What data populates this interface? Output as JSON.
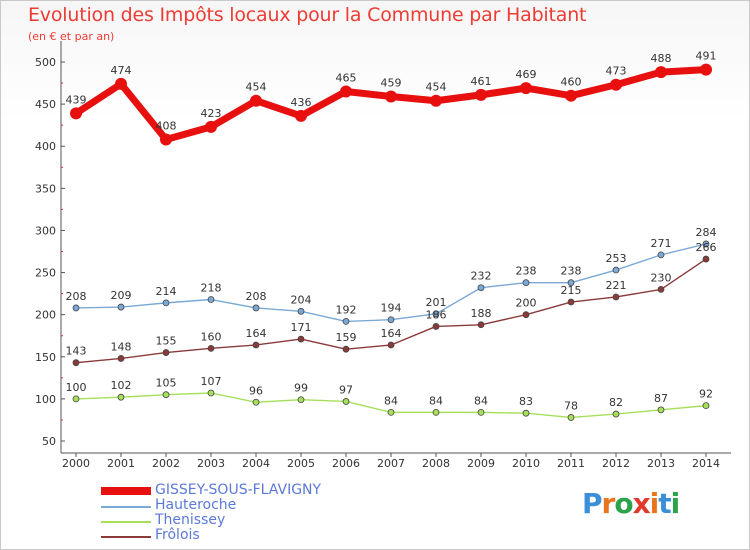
{
  "title": "Evolution des Impôts locaux pour la Commune par Habitant",
  "subtitle": "(en € et par an)",
  "logo": {
    "text": "Proxiti",
    "colors": [
      "#3a8fd8",
      "#e8761c",
      "#2aa34a",
      "#e23a2a",
      "#e8761c",
      "#3a8fd8",
      "#2aa34a"
    ]
  },
  "chart_data": {
    "type": "line",
    "x": [
      2000,
      2001,
      2002,
      2003,
      2004,
      2005,
      2006,
      2007,
      2008,
      2009,
      2010,
      2011,
      2012,
      2013,
      2014
    ],
    "ylim": [
      50,
      510
    ],
    "yticks": [
      50,
      100,
      150,
      200,
      250,
      300,
      350,
      400,
      450,
      500
    ],
    "grid": false,
    "legend_position": "bottom-left",
    "series": [
      {
        "name": "GISSEY-SOUS-FLAVIGNY",
        "color": "#e80f0f",
        "values": [
          439,
          474,
          408,
          423,
          454,
          436,
          465,
          459,
          454,
          461,
          469,
          460,
          473,
          488,
          491
        ]
      },
      {
        "name": "Hauteroche",
        "color": "#7aa9d6",
        "values": [
          208,
          209,
          214,
          218,
          208,
          204,
          192,
          194,
          201,
          232,
          238,
          238,
          253,
          271,
          284
        ]
      },
      {
        "name": "Thenissey",
        "color": "#a6e05a",
        "values": [
          100,
          102,
          105,
          107,
          96,
          99,
          97,
          84,
          84,
          84,
          83,
          78,
          82,
          87,
          92
        ]
      },
      {
        "name": "Frôlois",
        "color": "#8b3a3a",
        "values": [
          143,
          148,
          155,
          160,
          164,
          171,
          159,
          164,
          186,
          188,
          200,
          215,
          221,
          230,
          266
        ]
      }
    ]
  }
}
